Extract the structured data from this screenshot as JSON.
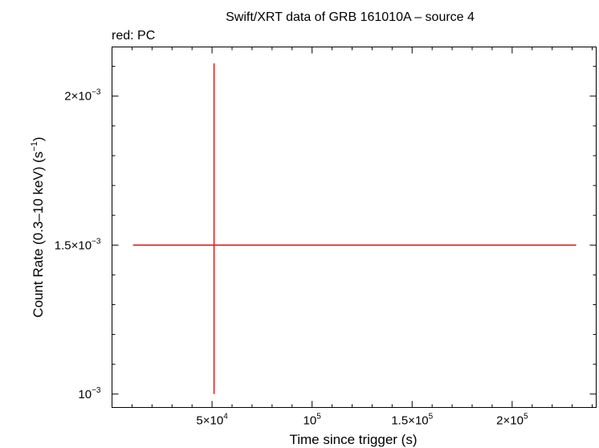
{
  "chart_data": {
    "type": "scatter",
    "title": "Swift/XRT data of GRB 161010A – source 4",
    "subtitle": "red: PC",
    "xlabel": "Time since trigger (s)",
    "ylabel": {
      "main": "Count Rate (0.3–10 keV) (s",
      "sup": "−1",
      "end": ")"
    },
    "xlim": [
      0,
      242000
    ],
    "ylim": [
      0.000955,
      0.002165
    ],
    "x_scale": "linear",
    "y_scale": "linear",
    "grid": false,
    "x_ticks": [
      {
        "value": 50000,
        "mant": "5×10",
        "exp": "4"
      },
      {
        "value": 100000,
        "mant": "10",
        "exp": "5"
      },
      {
        "value": 150000,
        "mant": "1.5×10",
        "exp": "5"
      },
      {
        "value": 200000,
        "mant": "2×10",
        "exp": "5"
      }
    ],
    "y_ticks": [
      {
        "value": 0.001,
        "mant": "10",
        "exp": "−3"
      },
      {
        "value": 0.0015,
        "mant": "1.5×10",
        "exp": "−3"
      },
      {
        "value": 0.002,
        "mant": "2×10",
        "exp": "−3"
      }
    ],
    "series": [
      {
        "mode": "PC",
        "color": "#e8191a",
        "points": [
          {
            "x": 51000,
            "y": 0.0015,
            "x_lo": 10500,
            "x_hi": 232000,
            "y_lo": 0.001,
            "y_hi": 0.00211
          }
        ]
      }
    ]
  }
}
